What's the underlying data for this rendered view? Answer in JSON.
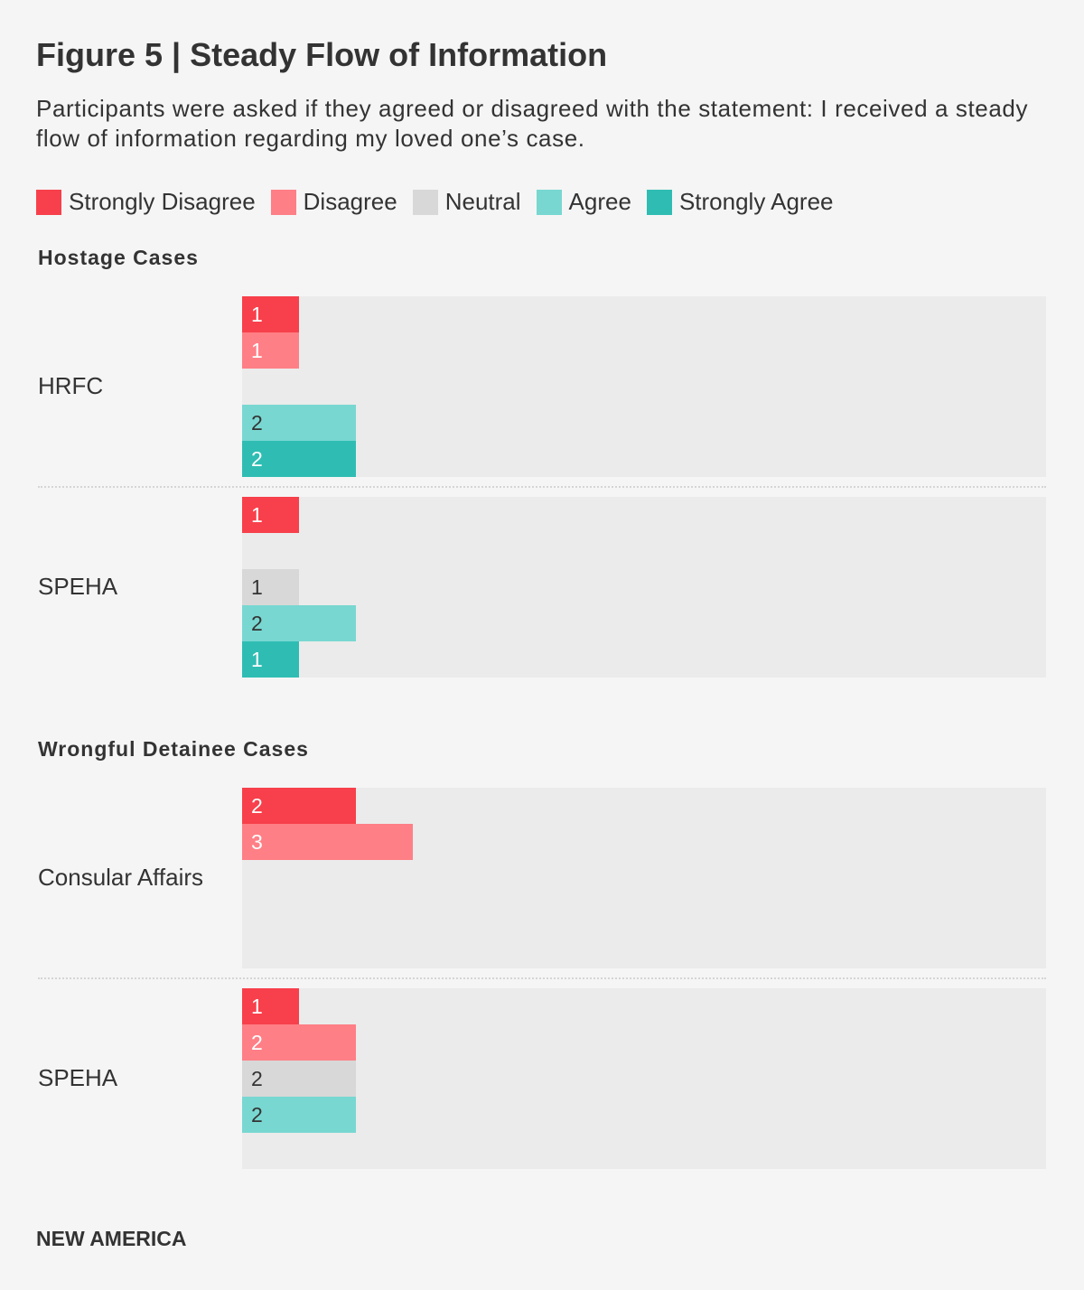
{
  "title": "Figure 5 | Steady Flow of Information",
  "subtitle": "Participants were asked if they agreed or disagreed with the statement: I received a steady flow of information regarding my loved one’s case.",
  "footer": "NEW AMERICA",
  "chart_data": {
    "type": "bar",
    "orientation": "horizontal",
    "xlim": [
      0,
      14.1
    ],
    "grid": false,
    "legend_placement": "top-left",
    "categories": [
      "Strongly Disagree",
      "Disagree",
      "Neutral",
      "Agree",
      "Strongly Agree"
    ],
    "colors": [
      "#f7404b",
      "#ff7f86",
      "#d8d8d8",
      "#78d7d1",
      "#2fbdb3"
    ],
    "label_colors": [
      "#ffffff",
      "#ffffff",
      "#333333",
      "#333333",
      "#ffffff"
    ],
    "sections": [
      {
        "title": "Hostage Cases",
        "groups": [
          {
            "name": "HRFC",
            "values": [
              1,
              1,
              0,
              2,
              2
            ]
          },
          {
            "name": "SPEHA",
            "values": [
              1,
              0,
              1,
              2,
              1
            ]
          }
        ]
      },
      {
        "title": "Wrongful Detainee Cases",
        "groups": [
          {
            "name": "Consular Affairs",
            "values": [
              2,
              3,
              0,
              0,
              0
            ]
          },
          {
            "name": "SPEHA",
            "values": [
              1,
              2,
              2,
              2,
              0
            ]
          }
        ]
      }
    ]
  }
}
